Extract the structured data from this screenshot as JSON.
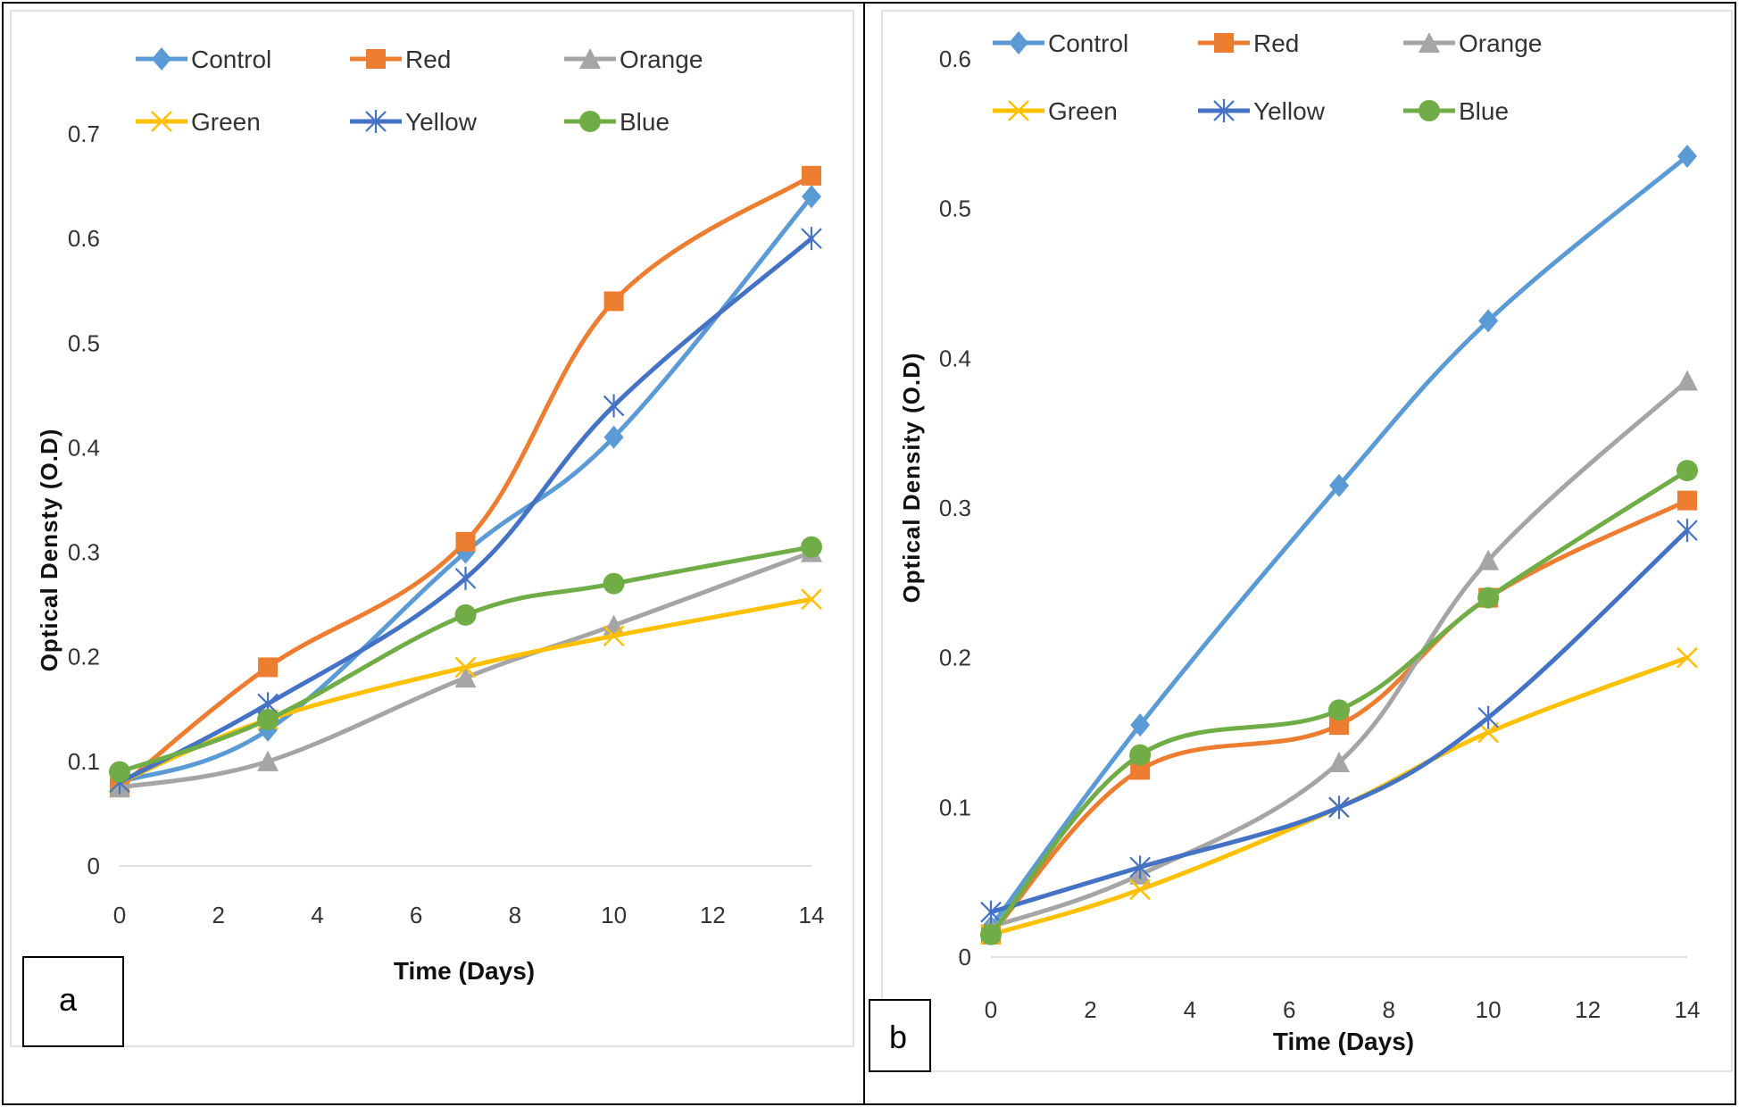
{
  "figure": {
    "panels": [
      "a",
      "b"
    ]
  },
  "colors": {
    "Control": "#5b9bd5",
    "Red": "#ed7d31",
    "Orange": "#a5a5a5",
    "Green": "#ffc000",
    "Yellow": "#4472c4",
    "Blue": "#70ad47"
  },
  "chart_data": [
    {
      "type": "line",
      "panel_label": "a",
      "title": "",
      "xlabel": "Time (Days)",
      "ylabel": "Optical Densty (O.D)",
      "x": [
        0,
        3,
        7,
        10,
        14
      ],
      "xlim": [
        0,
        14
      ],
      "ylim": [
        0,
        0.7
      ],
      "xticks": [
        "0",
        "2",
        "4",
        "6",
        "8",
        "10",
        "12",
        "14"
      ],
      "yticks": [
        "0",
        "0.1",
        "0.2",
        "0.3",
        "0.4",
        "0.5",
        "0.6",
        "0.7"
      ],
      "grid": false,
      "legend_position": "top",
      "series": [
        {
          "name": "Control",
          "marker": "diamond",
          "values": [
            0.08,
            0.13,
            0.3,
            0.41,
            0.64
          ]
        },
        {
          "name": "Red",
          "marker": "square",
          "values": [
            0.075,
            0.19,
            0.31,
            0.54,
            0.66
          ]
        },
        {
          "name": "Orange",
          "marker": "triangle",
          "values": [
            0.075,
            0.1,
            0.18,
            0.23,
            0.3
          ]
        },
        {
          "name": "Green",
          "marker": "x",
          "values": [
            0.08,
            0.14,
            0.19,
            0.22,
            0.255
          ]
        },
        {
          "name": "Yellow",
          "marker": "star",
          "values": [
            0.08,
            0.155,
            0.275,
            0.44,
            0.6
          ]
        },
        {
          "name": "Blue",
          "marker": "circle",
          "values": [
            0.09,
            0.14,
            0.24,
            0.27,
            0.305
          ]
        }
      ]
    },
    {
      "type": "line",
      "panel_label": "b",
      "title": "",
      "xlabel": "Time (Days)",
      "ylabel": "Optical Density (O.D)",
      "x": [
        0,
        3,
        7,
        10,
        14
      ],
      "xlim": [
        0,
        14
      ],
      "ylim": [
        0,
        0.6
      ],
      "xticks": [
        "0",
        "2",
        "4",
        "6",
        "8",
        "10",
        "12",
        "14"
      ],
      "yticks": [
        "0",
        "0.1",
        "0.2",
        "0.3",
        "0.4",
        "0.5",
        "0.6"
      ],
      "grid": false,
      "legend_position": "top",
      "series": [
        {
          "name": "Control",
          "marker": "diamond",
          "values": [
            0.02,
            0.155,
            0.315,
            0.425,
            0.535
          ]
        },
        {
          "name": "Red",
          "marker": "square",
          "values": [
            0.015,
            0.125,
            0.155,
            0.24,
            0.305
          ]
        },
        {
          "name": "Orange",
          "marker": "triangle",
          "values": [
            0.02,
            0.055,
            0.13,
            0.265,
            0.385
          ]
        },
        {
          "name": "Green",
          "marker": "x",
          "values": [
            0.015,
            0.045,
            0.1,
            0.15,
            0.2
          ]
        },
        {
          "name": "Yellow",
          "marker": "star",
          "values": [
            0.03,
            0.06,
            0.1,
            0.16,
            0.285
          ]
        },
        {
          "name": "Blue",
          "marker": "circle",
          "values": [
            0.015,
            0.135,
            0.165,
            0.24,
            0.325
          ]
        }
      ]
    }
  ]
}
